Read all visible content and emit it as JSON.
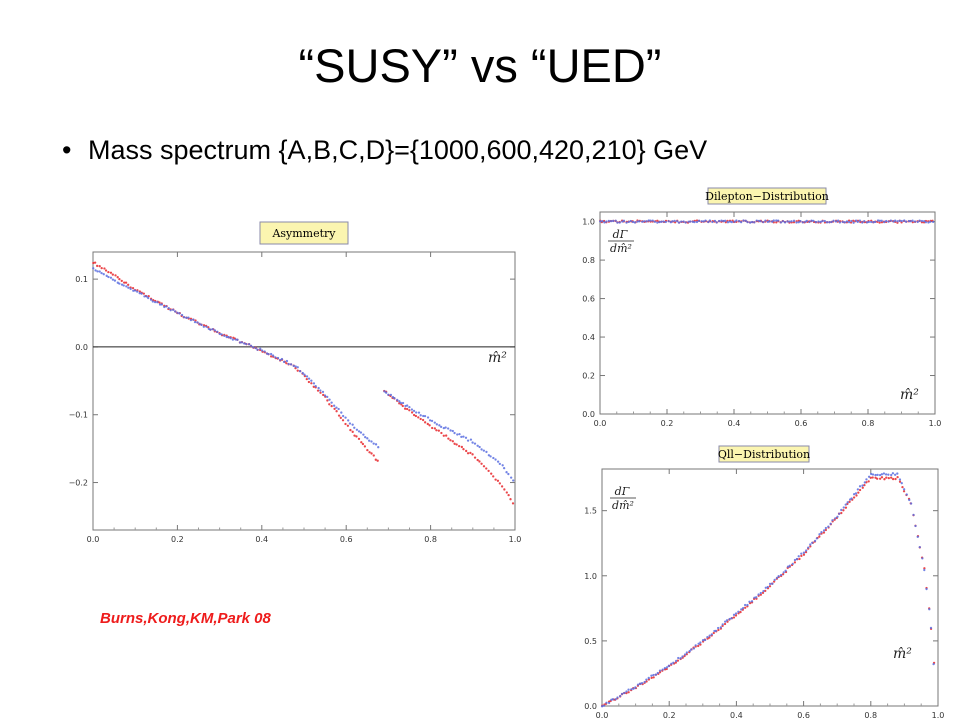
{
  "slide": {
    "title": "“SUSY” vs “UED”",
    "bullet": "Mass spectrum {A,B,C,D}={1000,600,420,210} GeV",
    "citation": "Burns,Kong,KM,Park  08"
  },
  "colors": {
    "series_red": "#e8262a",
    "series_blue": "#5a6fe0",
    "title_box": "#fbf5b0"
  },
  "chart_data": [
    {
      "id": "asymmetry",
      "type": "scatter",
      "title": "Asymmetry",
      "xlabel": "m̂²",
      "ylabel": "",
      "xlim": [
        0.0,
        1.0
      ],
      "ylim": [
        -0.27,
        0.14
      ],
      "xticks": [
        "0.0",
        "0.2",
        "0.4",
        "0.6",
        "0.8",
        "1.0"
      ],
      "yticks": [
        "0.1",
        "0.0",
        "−0.1",
        "−0.2"
      ],
      "yticks_values": [
        0.1,
        0.0,
        -0.1,
        -0.2
      ],
      "hline": 0.0,
      "series": [
        {
          "color": "red",
          "segments": [
            {
              "x": [
                0.0,
                0.1,
                0.2,
                0.3,
                0.38,
                0.48,
                0.55,
                0.62,
                0.68
              ],
              "y": [
                0.125,
                0.085,
                0.05,
                0.02,
                0.0,
                -0.03,
                -0.075,
                -0.13,
                -0.172
              ]
            },
            {
              "x": [
                0.69,
                0.75,
                0.82,
                0.9,
                0.97,
                1.0
              ],
              "y": [
                -0.065,
                -0.095,
                -0.125,
                -0.16,
                -0.205,
                -0.235
              ]
            }
          ]
        },
        {
          "color": "blue",
          "segments": [
            {
              "x": [
                0.0,
                0.1,
                0.2,
                0.3,
                0.38,
                0.48,
                0.55,
                0.62,
                0.68
              ],
              "y": [
                0.115,
                0.082,
                0.05,
                0.02,
                0.0,
                -0.028,
                -0.07,
                -0.12,
                -0.15
              ]
            },
            {
              "x": [
                0.69,
                0.75,
                0.82,
                0.9,
                0.97,
                1.0
              ],
              "y": [
                -0.065,
                -0.09,
                -0.115,
                -0.14,
                -0.175,
                -0.2
              ]
            }
          ]
        }
      ]
    },
    {
      "id": "dilepton",
      "type": "scatter",
      "title": "Dilepton−Distribution",
      "xlabel": "m̂²",
      "ylabel": "dΓ/dm̂²",
      "xlim": [
        0.0,
        1.0
      ],
      "ylim": [
        0.0,
        1.05
      ],
      "xticks": [
        "0.0",
        "0.2",
        "0.4",
        "0.6",
        "0.8",
        "1.0"
      ],
      "yticks": [
        "0.0",
        "0.2",
        "0.4",
        "0.6",
        "0.8",
        "1.0"
      ],
      "yticks_values": [
        0.0,
        0.2,
        0.4,
        0.6,
        0.8,
        1.0
      ],
      "series": [
        {
          "color": "red",
          "segments": [
            {
              "x": [
                0.0,
                1.0
              ],
              "y": [
                1.0,
                1.0
              ]
            }
          ]
        },
        {
          "color": "blue",
          "segments": [
            {
              "x": [
                0.0,
                1.0
              ],
              "y": [
                1.0,
                1.0
              ]
            }
          ]
        }
      ]
    },
    {
      "id": "qll",
      "type": "scatter",
      "title": "Qll−Distribution",
      "xlabel": "m̂²",
      "ylabel": "dΓ/dm̂²",
      "xlim": [
        0.0,
        1.0
      ],
      "ylim": [
        0.0,
        1.82
      ],
      "xticks": [
        "0.0",
        "0.2",
        "0.4",
        "0.6",
        "0.8",
        "1.0"
      ],
      "yticks": [
        "0.0",
        "0.5",
        "1.0",
        "1.5"
      ],
      "yticks_values": [
        0.0,
        0.5,
        1.0,
        1.5
      ],
      "series": [
        {
          "color": "red",
          "segments": [
            {
              "x": [
                0.0,
                0.1,
                0.2,
                0.3,
                0.4,
                0.5,
                0.6,
                0.7,
                0.75,
                0.8,
                0.88,
                0.92,
                0.96,
                0.98,
                0.995
              ],
              "y": [
                0.0,
                0.14,
                0.3,
                0.49,
                0.7,
                0.92,
                1.17,
                1.45,
                1.6,
                1.75,
                1.75,
                1.55,
                1.05,
                0.6,
                0.05
              ]
            }
          ]
        },
        {
          "color": "blue",
          "segments": [
            {
              "x": [
                0.0,
                0.1,
                0.2,
                0.3,
                0.4,
                0.5,
                0.6,
                0.7,
                0.75,
                0.8,
                0.88,
                0.92,
                0.96,
                0.98,
                0.995
              ],
              "y": [
                0.0,
                0.15,
                0.31,
                0.5,
                0.71,
                0.93,
                1.18,
                1.46,
                1.62,
                1.78,
                1.78,
                1.55,
                1.05,
                0.6,
                0.05
              ]
            }
          ]
        }
      ]
    }
  ]
}
